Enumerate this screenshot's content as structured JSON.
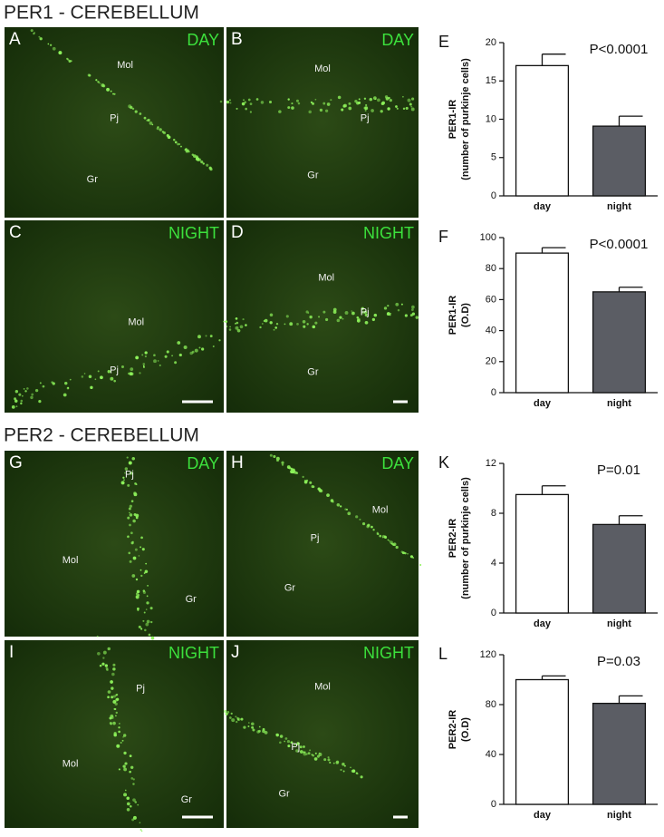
{
  "sections": [
    {
      "title": "PER1 - CEREBELLUM",
      "panels": [
        {
          "letter": "A",
          "condition": "DAY",
          "regions": [
            "Mol",
            "Pj",
            "Gr"
          ]
        },
        {
          "letter": "B",
          "condition": "DAY",
          "regions": [
            "Mol",
            "Pj",
            "Gr"
          ]
        },
        {
          "letter": "C",
          "condition": "NIGHT",
          "regions": [
            "Mol",
            "Pj"
          ]
        },
        {
          "letter": "D",
          "condition": "NIGHT",
          "regions": [
            "Mol",
            "Pj",
            "Gr"
          ]
        }
      ]
    },
    {
      "title": "PER2 - CEREBELLUM",
      "panels": [
        {
          "letter": "G",
          "condition": "DAY",
          "regions": [
            "Pj",
            "Mol",
            "Gr"
          ]
        },
        {
          "letter": "H",
          "condition": "DAY",
          "regions": [
            "Mol",
            "Pj",
            "Gr"
          ]
        },
        {
          "letter": "I",
          "condition": "NIGHT",
          "regions": [
            "Pj",
            "Mol",
            "Gr"
          ]
        },
        {
          "letter": "J",
          "condition": "NIGHT",
          "regions": [
            "Mol",
            "Pj",
            "Gr"
          ]
        }
      ]
    }
  ],
  "chart_data": [
    {
      "type": "bar",
      "panel": "E",
      "annotation": "P<0.0001",
      "ylabel": [
        "PER1-IR",
        "(number of purkinje cells)"
      ],
      "categories": [
        "day",
        "night"
      ],
      "values": [
        17,
        9.1
      ],
      "errors": [
        1.5,
        1.3
      ],
      "colors": [
        "#ffffff",
        "#5b5d64"
      ],
      "ylim": [
        0,
        20
      ],
      "yticks": [
        0,
        5,
        10,
        15,
        20
      ]
    },
    {
      "type": "bar",
      "panel": "F",
      "annotation": "P<0.0001",
      "ylabel": [
        "PER1-IR",
        "(O.D)"
      ],
      "categories": [
        "day",
        "night"
      ],
      "values": [
        90,
        65
      ],
      "errors": [
        3.5,
        3
      ],
      "colors": [
        "#ffffff",
        "#5b5d64"
      ],
      "ylim": [
        0,
        100
      ],
      "yticks": [
        0,
        20,
        40,
        60,
        80,
        100
      ]
    },
    {
      "type": "bar",
      "panel": "K",
      "annotation": "P=0.01",
      "ylabel": [
        "PER2-IR",
        "(number of purkinje cells)"
      ],
      "categories": [
        "day",
        "night"
      ],
      "values": [
        9.5,
        7.1
      ],
      "errors": [
        0.7,
        0.7
      ],
      "colors": [
        "#ffffff",
        "#5b5d64"
      ],
      "ylim": [
        0,
        12
      ],
      "yticks": [
        0,
        4,
        8,
        12
      ]
    },
    {
      "type": "bar",
      "panel": "L",
      "annotation": "P=0.03",
      "ylabel": [
        "PER2-IR",
        "(O.D)"
      ],
      "categories": [
        "day",
        "night"
      ],
      "values": [
        100,
        81
      ],
      "errors": [
        3,
        6
      ],
      "colors": [
        "#ffffff",
        "#5b5d64"
      ],
      "ylim": [
        0,
        120
      ],
      "yticks": [
        0,
        40,
        80,
        120
      ]
    }
  ]
}
